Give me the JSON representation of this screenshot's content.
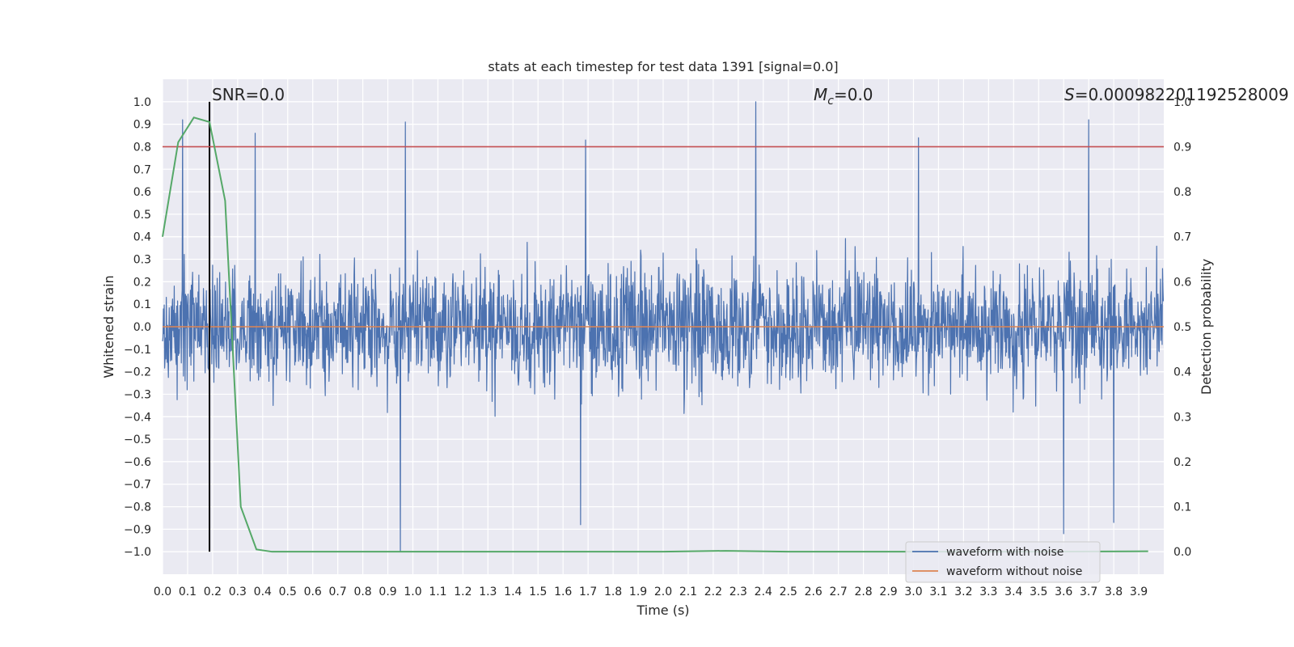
{
  "chart_data": {
    "type": "line",
    "title": "stats at each timestep for test data 1391 [signal=0.0]",
    "xlabel": "Time (s)",
    "ylabel": "Whitened strain",
    "y2label": "Detection probability",
    "xlim": [
      0.0,
      4.0
    ],
    "ylim": [
      -1.1,
      1.1
    ],
    "y2lim": [
      -0.05,
      1.05
    ],
    "xticks": [
      0.0,
      0.1,
      0.2,
      0.3,
      0.4,
      0.5,
      0.6,
      0.7,
      0.8,
      0.9,
      1.0,
      1.1,
      1.2,
      1.3,
      1.4,
      1.5,
      1.6,
      1.7,
      1.8,
      1.9,
      2.0,
      2.1,
      2.2,
      2.3,
      2.4,
      2.5,
      2.6,
      2.7,
      2.8,
      2.9,
      3.0,
      3.1,
      3.2,
      3.3,
      3.4,
      3.5,
      3.6,
      3.7,
      3.8,
      3.9
    ],
    "yticks": [
      -1.0,
      -0.9,
      -0.8,
      -0.7,
      -0.6,
      -0.5,
      -0.4,
      -0.3,
      -0.2,
      -0.1,
      0.0,
      0.1,
      0.2,
      0.3,
      0.4,
      0.5,
      0.6,
      0.7,
      0.8,
      0.9,
      1.0
    ],
    "y2ticks": [
      0.0,
      0.1,
      0.2,
      0.3,
      0.4,
      0.5,
      0.6,
      0.7,
      0.8,
      0.9,
      1.0
    ],
    "grid": true,
    "legend_position": "bottom-right",
    "series": [
      {
        "name": "waveform with noise",
        "axis": "left",
        "color": "#4c72b0",
        "sample_rate_hz": 2048,
        "description": "dense whitened-strain noise samples between about -1.0 and 1.0",
        "notable_peaks": [
          {
            "x": 0.08,
            "y": 0.92
          },
          {
            "x": 0.37,
            "y": 0.86
          },
          {
            "x": 0.97,
            "y": 0.91
          },
          {
            "x": 1.69,
            "y": 0.83
          },
          {
            "x": 2.37,
            "y": 1.0
          },
          {
            "x": 3.02,
            "y": 0.84
          },
          {
            "x": 3.7,
            "y": 0.92
          },
          {
            "x": 0.95,
            "y": -1.0
          },
          {
            "x": 3.6,
            "y": -0.92
          },
          {
            "x": 1.67,
            "y": -0.88
          },
          {
            "x": 3.8,
            "y": -0.87
          }
        ]
      },
      {
        "name": "waveform without noise",
        "axis": "left",
        "color": "#dd8452",
        "x": [
          0.0,
          4.0
        ],
        "y": [
          0.0,
          0.0
        ]
      },
      {
        "name": "detection probability",
        "axis": "right",
        "color": "#55a868",
        "x": [
          0.0,
          0.0625,
          0.125,
          0.1875,
          0.25,
          0.3125,
          0.375,
          0.4375,
          0.5,
          1.0,
          1.5,
          2.0,
          2.25,
          2.5,
          3.0,
          3.5,
          3.9375
        ],
        "y": [
          0.7,
          0.91,
          0.965,
          0.955,
          0.78,
          0.1,
          0.005,
          0.0,
          0.0,
          0.0,
          0.0,
          0.0,
          0.002,
          0.0,
          0.0,
          0.0,
          0.001
        ]
      }
    ],
    "threshold": {
      "axis": "right",
      "y": 0.9,
      "color": "#c44e52"
    },
    "event_marker": {
      "x": 0.1875,
      "color": "#000000"
    },
    "annotations": {
      "snr": "SNR=0.0",
      "mc_symbol": "M",
      "mc_subscript": "c",
      "mc_value": "=0.0",
      "s_symbol": "S",
      "s_value": "=0.000982201192528009"
    },
    "legend": [
      "waveform with noise",
      "waveform without noise"
    ],
    "colors": {
      "axes_bg": "#eaeaf2",
      "grid": "#ffffff",
      "noise": "#4c72b0",
      "clean": "#dd8452",
      "probability": "#55a868",
      "threshold": "#c44e52"
    }
  }
}
